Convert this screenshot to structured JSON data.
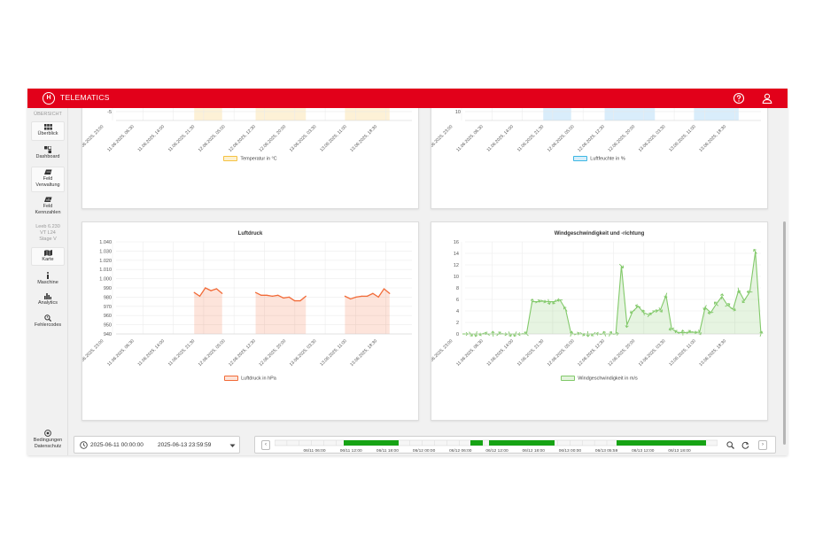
{
  "app": {
    "title": "TELEMATICS"
  },
  "sidebar": {
    "section_label": "ÜBERSICHT",
    "items": [
      {
        "label": "Überblick",
        "icon": "grid-icon"
      },
      {
        "label": "Dashboard",
        "icon": "dashboard-icon"
      },
      {
        "label": "Feld Verwaltung",
        "icon": "field-icon"
      },
      {
        "label": "Feld Kennzahlen",
        "icon": "field-stats-icon"
      }
    ],
    "machine_info": [
      "Leeb 6.230",
      "VT L24",
      "Stage V"
    ],
    "machine_items": [
      {
        "label": "Karte",
        "icon": "map-icon"
      },
      {
        "label": "Maschine",
        "icon": "info-icon"
      },
      {
        "label": "Analytics",
        "icon": "bar-chart-icon"
      },
      {
        "label": "Fehlercodes",
        "icon": "error-search-icon"
      }
    ],
    "footer": {
      "line1": "Bedingungen",
      "line2": "Datenschutz"
    }
  },
  "date_range": {
    "start": "2025-06-11 00:00:00",
    "end": "2025-06-13 23:59:59"
  },
  "timeline": {
    "labels": [
      "06/11 06:00",
      "06/11 12:00",
      "06/11 18:00",
      "06/12 00:00",
      "06/12 06:00",
      "06/12 12:00",
      "06/12 18:00",
      "06/13 00:00",
      "06/13 05:59",
      "06/13 12:00",
      "06/13 18:00"
    ],
    "activity_color": "#16a314"
  },
  "chart_data": [
    {
      "id": "temperature",
      "type": "area",
      "title": "",
      "visible_ticks_y": [
        "-5"
      ],
      "x_ticks": [
        "10.06.2025, 23:00",
        "11.06.2025, 06:30",
        "11.06.2025, 14:00",
        "11.06.2025, 21:30",
        "12.06.2025, 05:00",
        "12.06.2025, 12:30",
        "12.06.2025, 20:00",
        "13.06.2025, 03:30",
        "13.06.2025, 11:00",
        "13.06.2025, 18:30"
      ],
      "legend": "Temperatur in °C",
      "color": "#f5c242"
    },
    {
      "id": "humidity",
      "type": "area",
      "title": "",
      "visible_ticks_y": [
        "10"
      ],
      "x_ticks": [
        "10.06.2025, 23:00",
        "11.06.2025, 06:30",
        "11.06.2025, 14:00",
        "11.06.2025, 21:30",
        "12.06.2025, 05:00",
        "12.06.2025, 12:30",
        "12.06.2025, 20:00",
        "13.06.2025, 03:30",
        "13.06.2025, 11:00",
        "13.06.2025, 18:30"
      ],
      "legend": "Luftfeuchte in %",
      "color": "#3db7e4"
    },
    {
      "id": "pressure",
      "type": "area",
      "title": "Luftdruck",
      "ylim": [
        940,
        1040
      ],
      "y_ticks": [
        "1.040",
        "1.030",
        "1.020",
        "1.010",
        "1.000",
        "990",
        "980",
        "970",
        "960",
        "950",
        "940"
      ],
      "x_ticks": [
        "10.06.2025, 23:00",
        "11.06.2025, 06:30",
        "11.06.2025, 14:00",
        "11.06.2025, 21:30",
        "12.06.2025, 05:00",
        "12.06.2025, 12:30",
        "12.06.2025, 20:00",
        "13.06.2025, 03:30",
        "13.06.2025, 11:00",
        "13.06.2025, 18:30"
      ],
      "segments": [
        [
          [
            14,
            985
          ],
          [
            15,
            981
          ],
          [
            16,
            990
          ],
          [
            17,
            987
          ],
          [
            18,
            989
          ],
          [
            19,
            984
          ]
        ],
        [
          [
            25,
            985
          ],
          [
            26,
            982
          ],
          [
            27,
            982
          ],
          [
            28,
            981
          ],
          [
            29,
            982
          ],
          [
            30,
            979
          ],
          [
            31,
            980
          ],
          [
            32,
            976
          ],
          [
            33,
            976
          ],
          [
            34,
            981
          ]
        ],
        [
          [
            41,
            981
          ],
          [
            42,
            978
          ],
          [
            43,
            980
          ],
          [
            44,
            981
          ],
          [
            45,
            981
          ],
          [
            46,
            984
          ],
          [
            47,
            980
          ],
          [
            48,
            989
          ],
          [
            49,
            984
          ]
        ]
      ],
      "legend": "Luftdruck in hPa",
      "color": "#f26b38"
    },
    {
      "id": "wind",
      "type": "line",
      "title": "Windgeschwindigkeit und -richtung",
      "ylim": [
        0,
        16
      ],
      "y_ticks": [
        "16",
        "14",
        "12",
        "10",
        "8",
        "6",
        "4",
        "2",
        "0"
      ],
      "x_ticks": [
        "10.06.2025, 23:00",
        "11.06.2025, 06:30",
        "11.06.2025, 14:00",
        "11.06.2025, 21:30",
        "12.06.2025, 05:00",
        "12.06.2025, 12:30",
        "12.06.2025, 20:00",
        "13.06.2025, 03:30",
        "13.06.2025, 11:00",
        "13.06.2025, 18:30"
      ],
      "values": [
        0,
        0,
        0,
        0,
        0,
        0,
        0,
        0,
        0,
        0,
        0,
        0,
        5.6,
        5.6,
        5.7,
        5.6,
        5.6,
        5.9,
        4.3,
        0,
        0,
        0,
        0,
        0,
        0,
        0,
        0,
        0,
        11.8,
        1.6,
        3.9,
        4.8,
        3.7,
        3.3,
        4.0,
        4.2,
        6.7,
        0.9,
        0.3,
        0.2,
        0.3,
        0.3,
        0.3,
        4.6,
        3.7,
        5.2,
        6.5,
        5.0,
        4.3,
        7.6,
        5.8,
        7.3,
        14.3,
        0
      ],
      "legend": "Windgeschwindigkeit in m/s",
      "color": "#82c96a"
    }
  ]
}
